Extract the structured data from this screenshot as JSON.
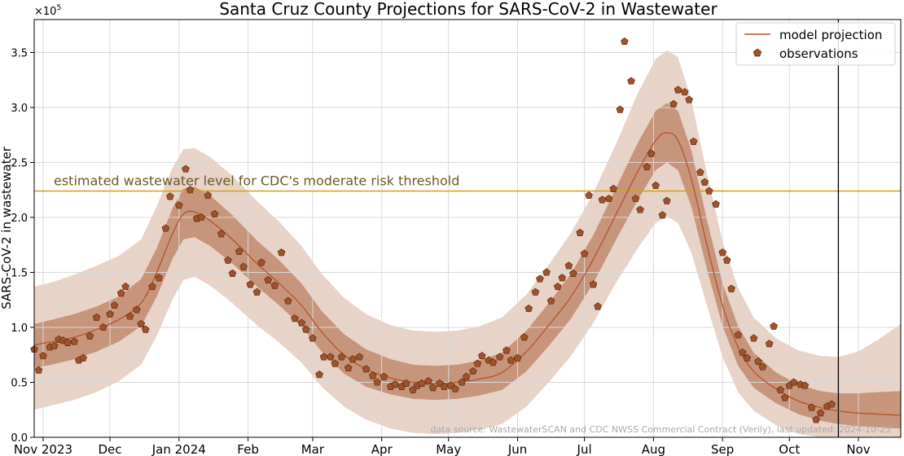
{
  "chart_data": {
    "type": "line",
    "title": "Santa Cruz County Projections for SARS-CoV-2 in Wastewater",
    "ylabel": "SARS-CoV-2 in wastewater",
    "y_multiplier_label": "×10",
    "y_multiplier_exp": "5",
    "ylim": [
      0,
      380000
    ],
    "xlim": [
      "2023-10-28",
      "2024-11-20"
    ],
    "grid": true,
    "legend_position": "top-right",
    "x_ticks": [
      {
        "date": "2023-11-01",
        "label": "Nov 2023"
      },
      {
        "date": "2023-12-01",
        "label": "Dec"
      },
      {
        "date": "2024-01-01",
        "label": "Jan 2024"
      },
      {
        "date": "2024-02-01",
        "label": "Feb"
      },
      {
        "date": "2024-03-01",
        "label": "Mar"
      },
      {
        "date": "2024-04-01",
        "label": "Apr"
      },
      {
        "date": "2024-05-01",
        "label": "May"
      },
      {
        "date": "2024-06-01",
        "label": "Jun"
      },
      {
        "date": "2024-07-01",
        "label": "Jul"
      },
      {
        "date": "2024-08-01",
        "label": "Aug"
      },
      {
        "date": "2024-09-01",
        "label": "Sep"
      },
      {
        "date": "2024-10-01",
        "label": "Oct"
      },
      {
        "date": "2024-11-01",
        "label": "Nov"
      }
    ],
    "y_ticks": [
      {
        "value": 0,
        "label": "0.0"
      },
      {
        "value": 50000,
        "label": "0.5"
      },
      {
        "value": 100000,
        "label": "1.0"
      },
      {
        "value": 150000,
        "label": "1.5"
      },
      {
        "value": 200000,
        "label": "2.0"
      },
      {
        "value": 250000,
        "label": "2.5"
      },
      {
        "value": 300000,
        "label": "3.0"
      },
      {
        "value": 350000,
        "label": "3.5"
      }
    ],
    "threshold": {
      "value": 224000,
      "label": "estimated wastewater level for CDC's moderate risk threshold",
      "color": "#d4a017",
      "text_color": "#6b5a1e"
    },
    "last_updated_line": "2024-10-23",
    "source_note": "data source: WastewaterSCAN and CDC NWSS Commercial Contract (Verily), last updated: 2024-10-23",
    "colors": {
      "model_line": "#b5522b",
      "inner_band": "#c7957c",
      "outer_band": "#e8d3c8",
      "observation_fill": "#a0522d",
      "observation_edge": "#5a2d0c",
      "grid": "#d9d9d9",
      "current_line": "#000000"
    },
    "series": [
      {
        "name": "model projection",
        "kind": "line",
        "points": [
          [
            "2023-10-28",
            84000,
            63000,
            103000,
            25000,
            137000
          ],
          [
            "2023-11-05",
            87000,
            66000,
            107000,
            29000,
            141000
          ],
          [
            "2023-11-15",
            91000,
            71000,
            112000,
            34000,
            148000
          ],
          [
            "2023-11-25",
            98000,
            78000,
            119000,
            41000,
            156000
          ],
          [
            "2023-12-05",
            107000,
            87000,
            128000,
            51000,
            165000
          ],
          [
            "2023-12-15",
            122000,
            101000,
            144000,
            66000,
            180000
          ],
          [
            "2023-12-22",
            150000,
            128000,
            172000,
            92000,
            210000
          ],
          [
            "2023-12-29",
            185000,
            162000,
            208000,
            125000,
            245000
          ],
          [
            "2024-01-03",
            203000,
            180000,
            226000,
            143000,
            262000
          ],
          [
            "2024-01-08",
            205000,
            182000,
            228000,
            146000,
            263000
          ],
          [
            "2024-01-15",
            197000,
            174000,
            220000,
            138000,
            255000
          ],
          [
            "2024-01-25",
            180000,
            158000,
            202000,
            122000,
            238000
          ],
          [
            "2024-02-05",
            158000,
            137000,
            179000,
            102000,
            215000
          ],
          [
            "2024-02-15",
            140000,
            120000,
            161000,
            86000,
            196000
          ],
          [
            "2024-02-25",
            120000,
            101000,
            140000,
            68000,
            174000
          ],
          [
            "2024-03-05",
            96000,
            78000,
            115000,
            46000,
            149000
          ],
          [
            "2024-03-15",
            75000,
            58000,
            94000,
            28000,
            127000
          ],
          [
            "2024-03-25",
            62000,
            46000,
            80000,
            16000,
            112000
          ],
          [
            "2024-04-05",
            54000,
            39000,
            71000,
            8000,
            102000
          ],
          [
            "2024-04-15",
            50000,
            35000,
            66000,
            4000,
            97000
          ],
          [
            "2024-04-25",
            49000,
            34000,
            65000,
            3000,
            96000
          ],
          [
            "2024-05-05",
            50000,
            35000,
            66000,
            4000,
            97000
          ],
          [
            "2024-05-15",
            53000,
            38000,
            70000,
            7000,
            101000
          ],
          [
            "2024-05-25",
            59000,
            43000,
            77000,
            12000,
            109000
          ],
          [
            "2024-06-05",
            78000,
            60000,
            97000,
            28000,
            130000
          ],
          [
            "2024-06-15",
            102000,
            83000,
            122000,
            50000,
            157000
          ],
          [
            "2024-06-25",
            128000,
            108000,
            149000,
            74000,
            186000
          ],
          [
            "2024-07-05",
            162000,
            140000,
            184000,
            104000,
            222000
          ],
          [
            "2024-07-15",
            202000,
            179000,
            226000,
            140000,
            266000
          ],
          [
            "2024-07-25",
            242000,
            216000,
            268000,
            172000,
            313000
          ],
          [
            "2024-08-02",
            270000,
            243000,
            297000,
            195000,
            344000
          ],
          [
            "2024-08-07",
            277000,
            250000,
            304000,
            201000,
            352000
          ],
          [
            "2024-08-12",
            270000,
            243000,
            297000,
            195000,
            346000
          ],
          [
            "2024-08-18",
            235000,
            210000,
            261000,
            168000,
            307000
          ],
          [
            "2024-08-25",
            175000,
            153000,
            198000,
            120000,
            240000
          ],
          [
            "2024-09-01",
            120000,
            101000,
            140000,
            73000,
            178000
          ],
          [
            "2024-09-08",
            82000,
            65000,
            101000,
            41000,
            136000
          ],
          [
            "2024-09-15",
            60000,
            45000,
            77000,
            24000,
            109000
          ],
          [
            "2024-09-25",
            44000,
            31000,
            59000,
            11000,
            90000
          ],
          [
            "2024-10-05",
            33000,
            21000,
            48000,
            3000,
            79000
          ],
          [
            "2024-10-15",
            27000,
            15000,
            42000,
            0,
            74000
          ],
          [
            "2024-10-23",
            24000,
            12000,
            40000,
            0,
            73000
          ],
          [
            "2024-11-01",
            22000,
            10000,
            40000,
            0,
            78000
          ],
          [
            "2024-11-10",
            21000,
            9000,
            41000,
            0,
            89000
          ],
          [
            "2024-11-20",
            20000,
            8000,
            42000,
            0,
            103000
          ]
        ]
      },
      {
        "name": "observations",
        "kind": "scatter",
        "points": [
          [
            "2023-10-28",
            80000
          ],
          [
            "2023-10-30",
            61000
          ],
          [
            "2023-11-01",
            74000
          ],
          [
            "2023-11-04",
            82000
          ],
          [
            "2023-11-06",
            83000
          ],
          [
            "2023-11-08",
            89000
          ],
          [
            "2023-11-10",
            88000
          ],
          [
            "2023-11-12",
            86000
          ],
          [
            "2023-11-15",
            87000
          ],
          [
            "2023-11-17",
            70000
          ],
          [
            "2023-11-19",
            72000
          ],
          [
            "2023-11-22",
            92000
          ],
          [
            "2023-11-25",
            109000
          ],
          [
            "2023-11-28",
            100000
          ],
          [
            "2023-12-01",
            112000
          ],
          [
            "2023-12-03",
            120000
          ],
          [
            "2023-12-06",
            131000
          ],
          [
            "2023-12-08",
            137000
          ],
          [
            "2023-12-10",
            110000
          ],
          [
            "2023-12-13",
            116000
          ],
          [
            "2023-12-15",
            103000
          ],
          [
            "2023-12-17",
            98000
          ],
          [
            "2023-12-20",
            137000
          ],
          [
            "2023-12-23",
            145000
          ],
          [
            "2023-12-26",
            190000
          ],
          [
            "2023-12-28",
            219000
          ],
          [
            "2024-01-01",
            211000
          ],
          [
            "2024-01-04",
            244000
          ],
          [
            "2024-01-06",
            225000
          ],
          [
            "2024-01-09",
            199000
          ],
          [
            "2024-01-11",
            200000
          ],
          [
            "2024-01-14",
            220000
          ],
          [
            "2024-01-17",
            203000
          ],
          [
            "2024-01-20",
            185000
          ],
          [
            "2024-01-23",
            161000
          ],
          [
            "2024-01-25",
            149000
          ],
          [
            "2024-01-28",
            169000
          ],
          [
            "2024-01-30",
            155000
          ],
          [
            "2024-02-02",
            139000
          ],
          [
            "2024-02-05",
            132000
          ],
          [
            "2024-02-07",
            159000
          ],
          [
            "2024-02-10",
            143000
          ],
          [
            "2024-02-13",
            138000
          ],
          [
            "2024-02-16",
            168000
          ],
          [
            "2024-02-19",
            124000
          ],
          [
            "2024-02-22",
            108000
          ],
          [
            "2024-02-25",
            104000
          ],
          [
            "2024-02-27",
            98000
          ],
          [
            "2024-03-01",
            90000
          ],
          [
            "2024-03-04",
            57000
          ],
          [
            "2024-03-06",
            73000
          ],
          [
            "2024-03-09",
            73000
          ],
          [
            "2024-03-11",
            67000
          ],
          [
            "2024-03-14",
            73000
          ],
          [
            "2024-03-17",
            63000
          ],
          [
            "2024-03-19",
            71000
          ],
          [
            "2024-03-22",
            73000
          ],
          [
            "2024-03-25",
            62000
          ],
          [
            "2024-03-28",
            56000
          ],
          [
            "2024-03-30",
            50000
          ],
          [
            "2024-04-02",
            55000
          ],
          [
            "2024-04-05",
            46000
          ],
          [
            "2024-04-07",
            48000
          ],
          [
            "2024-04-10",
            46000
          ],
          [
            "2024-04-12",
            49000
          ],
          [
            "2024-04-15",
            43000
          ],
          [
            "2024-04-17",
            47000
          ],
          [
            "2024-04-19",
            49000
          ],
          [
            "2024-04-22",
            51000
          ],
          [
            "2024-04-24",
            45000
          ],
          [
            "2024-04-27",
            49000
          ],
          [
            "2024-04-29",
            46000
          ],
          [
            "2024-05-02",
            47000
          ],
          [
            "2024-05-04",
            44000
          ],
          [
            "2024-05-07",
            50000
          ],
          [
            "2024-05-09",
            55000
          ],
          [
            "2024-05-12",
            60000
          ],
          [
            "2024-05-14",
            67000
          ],
          [
            "2024-05-16",
            74000
          ],
          [
            "2024-05-19",
            70000
          ],
          [
            "2024-05-21",
            68000
          ],
          [
            "2024-05-24",
            73000
          ],
          [
            "2024-05-27",
            79000
          ],
          [
            "2024-05-29",
            70000
          ],
          [
            "2024-06-01",
            72000
          ],
          [
            "2024-06-04",
            91000
          ],
          [
            "2024-06-06",
            117000
          ],
          [
            "2024-06-09",
            132000
          ],
          [
            "2024-06-11",
            144000
          ],
          [
            "2024-06-14",
            150000
          ],
          [
            "2024-06-16",
            124000
          ],
          [
            "2024-06-19",
            137000
          ],
          [
            "2024-06-21",
            145000
          ],
          [
            "2024-06-24",
            156000
          ],
          [
            "2024-06-26",
            149000
          ],
          [
            "2024-06-29",
            186000
          ],
          [
            "2024-07-01",
            167000
          ],
          [
            "2024-07-03",
            220000
          ],
          [
            "2024-07-05",
            139000
          ],
          [
            "2024-07-07",
            119000
          ],
          [
            "2024-07-09",
            216000
          ],
          [
            "2024-07-12",
            217000
          ],
          [
            "2024-07-14",
            226000
          ],
          [
            "2024-07-17",
            298000
          ],
          [
            "2024-07-19",
            360000
          ],
          [
            "2024-07-22",
            324000
          ],
          [
            "2024-07-24",
            217000
          ],
          [
            "2024-07-26",
            207000
          ],
          [
            "2024-07-29",
            246000
          ],
          [
            "2024-07-31",
            258000
          ],
          [
            "2024-08-02",
            229000
          ],
          [
            "2024-08-05",
            202000
          ],
          [
            "2024-08-07",
            215000
          ],
          [
            "2024-08-10",
            303000
          ],
          [
            "2024-08-12",
            316000
          ],
          [
            "2024-08-15",
            314000
          ],
          [
            "2024-08-17",
            307000
          ],
          [
            "2024-08-19",
            269000
          ],
          [
            "2024-08-22",
            241000
          ],
          [
            "2024-08-24",
            232000
          ],
          [
            "2024-08-26",
            224000
          ],
          [
            "2024-08-29",
            212000
          ],
          [
            "2024-09-01",
            168000
          ],
          [
            "2024-09-03",
            161000
          ],
          [
            "2024-09-05",
            135000
          ],
          [
            "2024-09-08",
            93000
          ],
          [
            "2024-09-10",
            77000
          ],
          [
            "2024-09-12",
            72000
          ],
          [
            "2024-09-15",
            90000
          ],
          [
            "2024-09-17",
            69000
          ],
          [
            "2024-09-19",
            64000
          ],
          [
            "2024-09-22",
            85000
          ],
          [
            "2024-09-24",
            101000
          ],
          [
            "2024-09-27",
            43000
          ],
          [
            "2024-09-29",
            36000
          ],
          [
            "2024-10-01",
            47000
          ],
          [
            "2024-10-03",
            50000
          ],
          [
            "2024-10-06",
            48000
          ],
          [
            "2024-10-08",
            47000
          ],
          [
            "2024-10-11",
            27000
          ],
          [
            "2024-10-13",
            16000
          ],
          [
            "2024-10-15",
            22000
          ],
          [
            "2024-10-18",
            28000
          ],
          [
            "2024-10-20",
            30000
          ]
        ]
      }
    ]
  }
}
